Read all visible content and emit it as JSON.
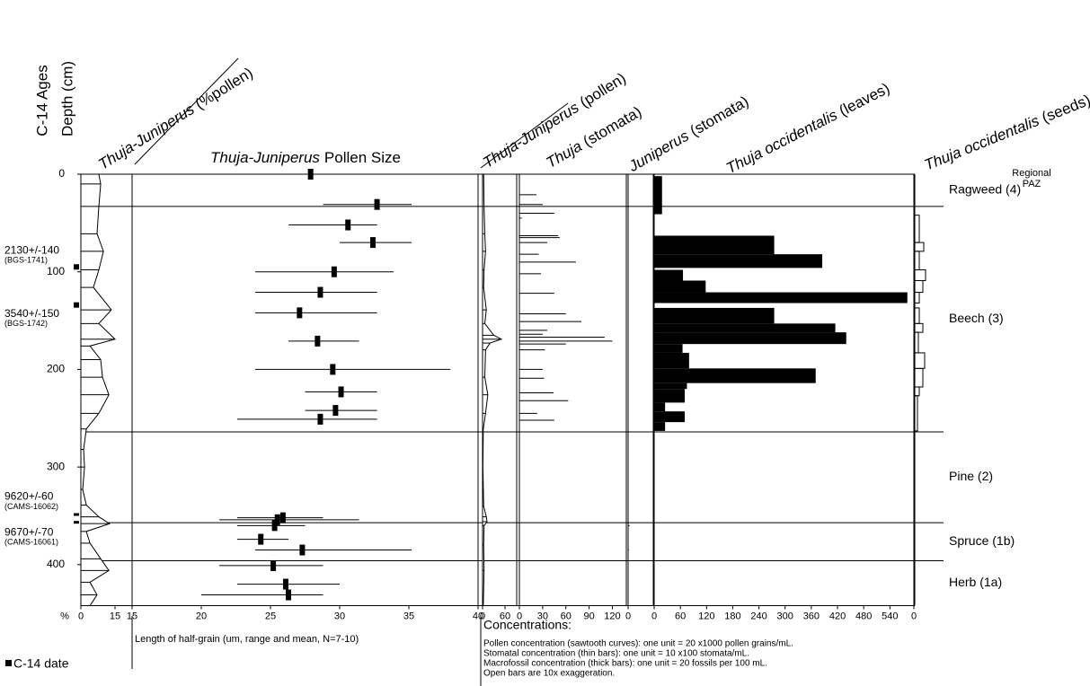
{
  "chart_data": {
    "type": "stratigraphic",
    "age_label": "C-14 Ages",
    "ylabel": "Depth (cm)",
    "ylim": [
      0,
      442
    ],
    "yticks": [
      0,
      100,
      200,
      300,
      400
    ],
    "zone_title": [
      "Regional",
      "PAZ"
    ],
    "zone_boundaries": [
      33,
      264,
      357,
      396
    ],
    "zones": [
      "Ragweed (4)",
      "Beech (3)",
      "Pine (2)",
      "Spruce (1b)",
      "Herb (1a)"
    ],
    "dates": [
      {
        "label": "2130+/-140",
        "lab": "(BGS-1741)",
        "depth": 95
      },
      {
        "label": "3540+/-150",
        "lab": "(BGS-1742)",
        "depth": 134
      },
      {
        "label": "9620+/-60",
        "lab": "(CAMS-16062)",
        "depth": 350
      },
      {
        "label": "9670+/-70",
        "lab": "(CAMS-16061)",
        "depth": 358
      }
    ],
    "date_legend": "C-14 date",
    "notes_title": "Concentrations:",
    "notes": [
      "Pollen concentration (sawtooth curves): one unit = 20 x1000 pollen grains/mL.",
      "Stomatal concentration (thin bars): one unit = 10 x100 stomata/mL.",
      "Macrofossil concentration (thick bars): one unit = 20 fossils per 100 mL.",
      "Open bars are 10x exaggeration."
    ],
    "panels": [
      {
        "type": "area",
        "taxon": "Thuja-Juniperus",
        "label": "(%pollen)",
        "unit_label": "%",
        "xlim": [
          0,
          22.5
        ],
        "xticks": [
          0,
          15
        ],
        "depth": [
          0,
          10,
          33,
          61,
          79,
          98,
          116,
          139,
          153,
          169,
          176,
          190,
          208,
          226,
          245,
          261,
          282,
          300,
          323,
          339,
          351,
          358,
          366,
          378,
          394,
          406,
          418,
          431,
          442
        ],
        "values": [
          7.9,
          8.7,
          7.9,
          7.1,
          9.9,
          7.9,
          5.5,
          13.4,
          7.9,
          15,
          4,
          8.7,
          9.5,
          12.3,
          7.9,
          2.4,
          1.2,
          1.6,
          0.8,
          2.4,
          7.9,
          12.6,
          2.4,
          4,
          8.7,
          12.3,
          4,
          7.1,
          4
        ]
      },
      {
        "type": "range",
        "taxon": "Thuja-Juniperus",
        "title": "Pollen Size",
        "xlabel": "Length of half-grain (um, range and mean, N=7-10)",
        "xlim": [
          15,
          40
        ],
        "xticks": [
          15,
          20,
          25,
          30,
          35,
          40
        ],
        "depth": [
          0,
          31,
          52,
          70,
          100,
          121,
          142,
          171,
          200,
          223,
          242,
          251,
          352,
          354,
          360,
          374,
          385,
          401,
          420,
          431
        ],
        "low": [
          27.4,
          28.8,
          26.3,
          30.0,
          23.9,
          23.9,
          23.9,
          26.3,
          23.9,
          27.5,
          27.5,
          22.6,
          22.6,
          21.3,
          22.6,
          22.6,
          23.9,
          21.3,
          22.6,
          20.0
        ],
        "mean": [
          27.9,
          32.7,
          30.6,
          32.4,
          29.6,
          28.6,
          27.1,
          28.4,
          29.5,
          30.1,
          29.7,
          28.6,
          25.9,
          25.5,
          25.3,
          24.3,
          27.3,
          25.2,
          26.1,
          26.3
        ],
        "high": [
          38.0,
          35.2,
          32.7,
          35.2,
          33.9,
          32.7,
          32.7,
          31.4,
          38.0,
          32.7,
          32.7,
          32.7,
          28.8,
          31.4,
          27.5,
          26.3,
          35.2,
          28.8,
          30.0,
          28.8
        ]
      },
      {
        "type": "area",
        "taxon": "Thuja-Juniperus",
        "label": "(pollen)",
        "xlim": [
          0,
          91
        ],
        "xticks": [
          0,
          60
        ],
        "depth": [
          0,
          33,
          61,
          79,
          98,
          116,
          139,
          153,
          165,
          169,
          173,
          180,
          208,
          226,
          245,
          261,
          300,
          340,
          351,
          356,
          360,
          380,
          406,
          442
        ],
        "values": [
          3,
          4,
          6,
          8,
          4,
          3,
          10,
          6,
          30,
          50,
          20,
          8,
          6,
          14,
          8,
          2,
          1,
          3,
          10,
          12,
          4,
          3,
          4,
          2
        ]
      },
      {
        "type": "bars",
        "taxon": "Thuja",
        "label": "(stomata)",
        "xlim": [
          0,
          138
        ],
        "xticks": [
          0,
          30,
          60,
          90,
          120
        ],
        "depth": [
          21,
          31,
          40,
          45,
          63,
          65,
          70,
          82,
          90,
          102,
          122,
          143,
          151,
          160,
          164,
          167,
          171,
          174,
          180,
          200,
          209,
          224,
          232,
          245,
          252
        ],
        "values": [
          22,
          30,
          45,
          3,
          50,
          52,
          36,
          25,
          73,
          28,
          45,
          60,
          80,
          36,
          30,
          110,
          120,
          60,
          33,
          30,
          32,
          44,
          63,
          23,
          45
        ]
      },
      {
        "type": "bars",
        "taxon": "Juniperus",
        "label": "(stomata)",
        "xlim": [
          0,
          33
        ],
        "xticks": [
          0
        ],
        "depth": [
          360,
          385
        ],
        "values": [
          2,
          1
        ]
      },
      {
        "type": "blocks",
        "taxon": "Thuja occidentalis",
        "label": "(leaves)",
        "xlim": [
          0,
          597
        ],
        "xticks": [
          0,
          60,
          120,
          180,
          240,
          300,
          360,
          420,
          480,
          540
        ],
        "top": [
          2,
          63,
          82,
          98,
          109,
          121,
          137,
          153,
          162,
          174,
          183,
          199,
          214,
          220,
          234,
          243,
          254
        ],
        "bottom": [
          41,
          82,
          96,
          109,
          121,
          132,
          153,
          162,
          174,
          183,
          199,
          214,
          220,
          234,
          243,
          254,
          263
        ],
        "values": [
          18,
          275,
          385,
          66,
          118,
          580,
          275,
          415,
          440,
          65,
          80,
          370,
          75,
          70,
          25,
          70,
          25
        ]
      },
      {
        "type": "openblocks",
        "taxon": "Thuja occidentalis",
        "label": "(seeds)",
        "xlim": [
          0,
          3
        ],
        "xticks": [
          0
        ],
        "top": [
          42,
          70,
          79,
          98,
          109,
          121,
          137,
          153,
          162,
          183,
          199,
          218,
          227
        ],
        "bottom": [
          70,
          79,
          98,
          109,
          121,
          132,
          153,
          162,
          183,
          199,
          218,
          227,
          263
        ],
        "values": [
          0.6,
          1.1,
          0.6,
          1.3,
          1.0,
          0.6,
          0.6,
          1.0,
          0.5,
          1.2,
          1.0,
          0.6,
          0.4
        ]
      }
    ]
  }
}
